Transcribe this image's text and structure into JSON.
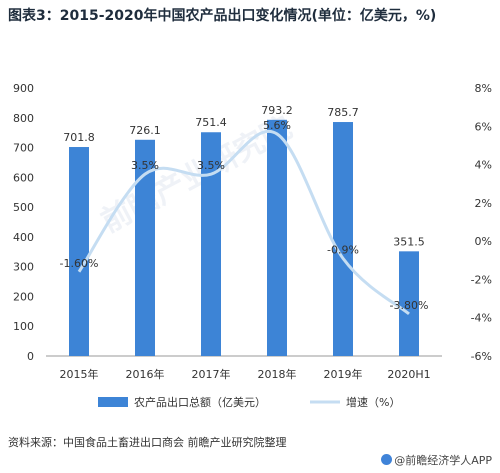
{
  "title": "图表3：2015-2020年中国农产品出口变化情况(单位：亿美元，%)",
  "source": "资料来源：中国食品土畜进出口商会 前瞻产业研究院整理",
  "brand": "@前瞻经济学人APP",
  "watermark": "前瞻产业研究院",
  "colors": {
    "bar": "#3d84d6",
    "line": "#c5ddf2",
    "axis": "#999999",
    "text": "#333333"
  },
  "chart_data": {
    "type": "bar",
    "categories": [
      "2015年",
      "2016年",
      "2017年",
      "2018年",
      "2019年",
      "2020H1"
    ],
    "series": [
      {
        "name": "农产品出口总额（亿美元）",
        "type": "bar",
        "axis": "left",
        "values": [
          701.8,
          726.1,
          751.4,
          793.2,
          785.7,
          351.5
        ],
        "labels": [
          "701.8",
          "726.1",
          "751.4",
          "793.2",
          "785.7",
          "351.5"
        ]
      },
      {
        "name": "增速（%）",
        "type": "line",
        "axis": "right",
        "values": [
          -1.6,
          3.5,
          3.5,
          5.6,
          -0.9,
          -3.8
        ],
        "labels": [
          "-1.60%",
          "3.5%",
          "3.5%",
          "5.6%",
          "-0.9%",
          "-3.80%"
        ]
      }
    ],
    "ylim_left": [
      0,
      900
    ],
    "yticks_left": [
      "0",
      "100",
      "200",
      "300",
      "400",
      "500",
      "600",
      "700",
      "800",
      "900"
    ],
    "ylim_right": [
      -6,
      8
    ],
    "yticks_right": [
      "-6%",
      "-4%",
      "-2%",
      "0%",
      "2%",
      "4%",
      "6%",
      "8%"
    ],
    "legend_position": "bottom"
  }
}
